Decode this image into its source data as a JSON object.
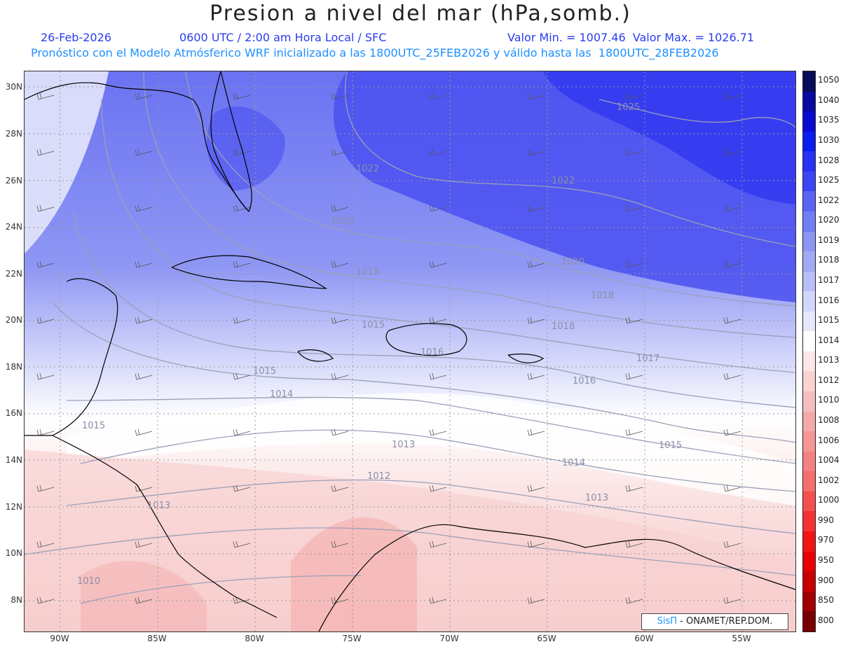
{
  "title": "Presion a nivel del mar (hPa,somb.)",
  "header": {
    "date": "26-Feb-2026",
    "time": "0600 UTC / 2:00 am Hora Local / SFC",
    "min_max": "Valor Min. = 1007.46  Valor Max. = 1026.71",
    "forecast": "Pronóstico con el Modelo Atmósferico WRF inicializado a las 1800UTC_25FEB2026 y válido hasta las  1800UTC_28FEB2026"
  },
  "axes": {
    "lat_labels": [
      "30N",
      "28N",
      "26N",
      "24N",
      "22N",
      "20N",
      "18N",
      "16N",
      "14N",
      "12N",
      "10N",
      "8N"
    ],
    "lon_labels": [
      "90W",
      "85W",
      "80W",
      "75W",
      "70W",
      "65W",
      "60W",
      "55W"
    ]
  },
  "contour_labels": [
    "1025",
    "1022",
    "1022",
    "1020",
    "1020",
    "1018",
    "1018",
    "1018",
    "1017",
    "1016",
    "1016",
    "1015",
    "1015",
    "1015",
    "1015",
    "1014",
    "1014",
    "1013",
    "1013",
    "1013",
    "1012",
    "1010"
  ],
  "colorbar": {
    "labels": [
      "1050",
      "1040",
      "1035",
      "1030",
      "1028",
      "1025",
      "1022",
      "1020",
      "1019",
      "1018",
      "1017",
      "1016",
      "1015",
      "1014",
      "1013",
      "1012",
      "1010",
      "1008",
      "1006",
      "1004",
      "1002",
      "1000",
      "990",
      "970",
      "950",
      "900",
      "850",
      "800"
    ],
    "colors": [
      "#0a0a5a",
      "#0a0aa0",
      "#0a0ad2",
      "#0a1ef0",
      "#2832f5",
      "#3c46f5",
      "#5a64f5",
      "#737df5",
      "#8c96f5",
      "#a0aaf5",
      "#b9bef8",
      "#d2d7fa",
      "#e6e9fc",
      "#ffffff",
      "#fde6e6",
      "#fad2d2",
      "#f5bebe",
      "#f5aaaa",
      "#f59696",
      "#f58282",
      "#f56e6e",
      "#f55050",
      "#f53232",
      "#f01414",
      "#e60000",
      "#c80000",
      "#a00000",
      "#780000"
    ]
  },
  "credit": {
    "logo": "SisΠ",
    "text": " - ONAMET/REP.DOM."
  }
}
